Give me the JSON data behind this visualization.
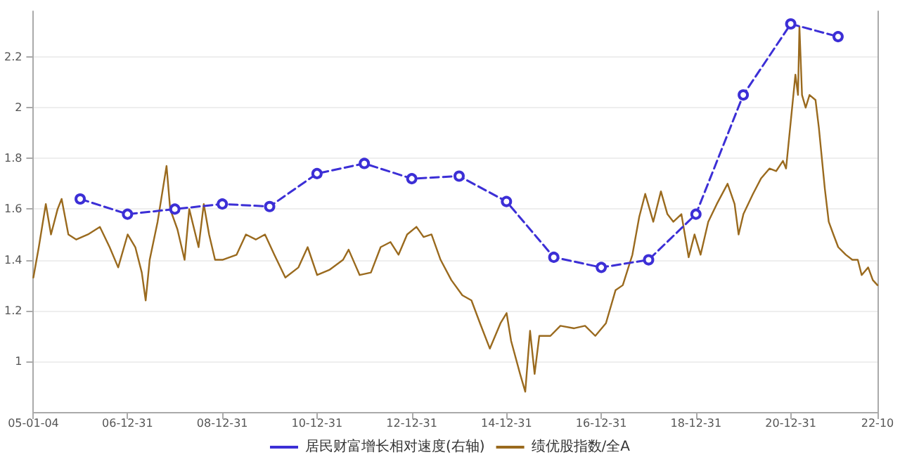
{
  "chart_data": {
    "type": "line",
    "xlim": [
      "2005-01-04",
      "2022-10-31"
    ],
    "xticks": [
      {
        "value": "2005-01-04",
        "label": "05-01-04"
      },
      {
        "value": "2006-12-31",
        "label": "06-12-31"
      },
      {
        "value": "2008-12-31",
        "label": "08-12-31"
      },
      {
        "value": "2010-12-31",
        "label": "10-12-31"
      },
      {
        "value": "2012-12-31",
        "label": "12-12-31"
      },
      {
        "value": "2014-12-31",
        "label": "14-12-31"
      },
      {
        "value": "2016-12-31",
        "label": "16-12-31"
      },
      {
        "value": "2018-12-31",
        "label": "18-12-31"
      },
      {
        "value": "2020-12-31",
        "label": "20-12-31"
      },
      {
        "value": "2022-10-31",
        "label": "22-10"
      }
    ],
    "ylim": [
      0.8,
      2.38
    ],
    "yticks": [
      1,
      1.2,
      1.4,
      1.6,
      1.8,
      2,
      2.2
    ],
    "grid": "y",
    "legend": "bottom",
    "series": [
      {
        "name": "居民财富增长相对速度(右轴)",
        "color": "#3c2fd6",
        "marker": "circle",
        "line_style": "dashed",
        "x": [
          "2005-12-31",
          "2006-12-31",
          "2007-12-31",
          "2008-12-31",
          "2009-12-31",
          "2010-12-31",
          "2011-12-31",
          "2012-12-31",
          "2013-12-31",
          "2014-12-31",
          "2015-12-31",
          "2016-12-31",
          "2017-12-31",
          "2018-12-31",
          "2019-12-31",
          "2020-12-31",
          "2021-12-31"
        ],
        "values": [
          1.64,
          1.58,
          1.6,
          1.62,
          1.61,
          1.74,
          1.78,
          1.72,
          1.73,
          1.63,
          1.41,
          1.37,
          1.4,
          1.58,
          2.05,
          2.33,
          2.28
        ]
      },
      {
        "name": "绩优股指数/全A",
        "color": "#9a6a1e",
        "marker": "none",
        "line_style": "solid",
        "x": [
          "2005-01-04",
          "2005-02-15",
          "2005-04-10",
          "2005-05-20",
          "2005-07-10",
          "2005-08-10",
          "2005-10-01",
          "2005-12-01",
          "2006-03-01",
          "2006-06-01",
          "2006-08-15",
          "2006-10-20",
          "2007-01-01",
          "2007-03-01",
          "2007-04-20",
          "2007-05-20",
          "2007-06-20",
          "2007-08-20",
          "2007-10-28",
          "2007-11-25",
          "2008-01-20",
          "2008-03-15",
          "2008-04-20",
          "2008-07-01",
          "2008-08-10",
          "2008-09-20",
          "2008-11-05",
          "2009-01-01",
          "2009-04-20",
          "2009-07-01",
          "2009-09-15",
          "2009-11-25",
          "2010-02-05",
          "2010-05-01",
          "2010-08-10",
          "2010-10-20",
          "2011-01-01",
          "2011-04-05",
          "2011-07-20",
          "2011-09-01",
          "2011-11-25",
          "2012-02-20",
          "2012-05-05",
          "2012-07-20",
          "2012-09-20",
          "2012-11-25",
          "2013-02-05",
          "2013-04-01",
          "2013-06-01",
          "2013-08-10",
          "2013-11-01",
          "2014-01-25",
          "2014-04-05",
          "2014-06-10",
          "2014-08-25",
          "2014-11-15",
          "2015-01-01",
          "2015-02-05",
          "2015-04-15",
          "2015-05-25",
          "2015-07-01",
          "2015-08-05",
          "2015-09-10",
          "2015-12-05",
          "2016-02-20",
          "2016-06-05",
          "2016-08-28",
          "2016-11-15",
          "2017-02-05",
          "2017-04-20",
          "2017-06-15",
          "2017-08-28",
          "2017-10-20",
          "2017-12-05",
          "2018-02-05",
          "2018-04-05",
          "2018-05-25",
          "2018-07-10",
          "2018-09-10",
          "2018-11-05",
          "2018-12-20",
          "2019-02-05",
          "2019-04-05",
          "2019-06-10",
          "2019-09-01",
          "2019-10-25",
          "2019-11-25",
          "2020-01-01",
          "2020-03-15",
          "2020-05-15",
          "2020-07-20",
          "2020-09-10",
          "2020-11-01",
          "2020-11-25",
          "2021-01-01",
          "2021-02-05",
          "2021-02-25",
          "2021-03-08",
          "2021-03-28",
          "2021-04-25",
          "2021-05-25",
          "2021-07-10",
          "2021-08-05",
          "2021-09-20",
          "2021-10-20",
          "2021-11-25",
          "2022-01-01",
          "2022-03-01",
          "2022-04-20",
          "2022-06-01",
          "2022-07-01",
          "2022-08-20",
          "2022-09-25",
          "2022-10-31"
        ],
        "values": [
          1.33,
          1.45,
          1.62,
          1.5,
          1.6,
          1.64,
          1.5,
          1.48,
          1.5,
          1.53,
          1.45,
          1.37,
          1.5,
          1.45,
          1.35,
          1.24,
          1.4,
          1.55,
          1.77,
          1.6,
          1.52,
          1.4,
          1.6,
          1.45,
          1.62,
          1.5,
          1.4,
          1.4,
          1.42,
          1.5,
          1.48,
          1.5,
          1.42,
          1.33,
          1.37,
          1.45,
          1.34,
          1.36,
          1.4,
          1.44,
          1.34,
          1.35,
          1.45,
          1.47,
          1.42,
          1.5,
          1.53,
          1.49,
          1.5,
          1.4,
          1.32,
          1.26,
          1.24,
          1.15,
          1.05,
          1.15,
          1.19,
          1.08,
          0.95,
          0.88,
          1.12,
          0.95,
          1.1,
          1.1,
          1.14,
          1.13,
          1.14,
          1.1,
          1.15,
          1.28,
          1.3,
          1.42,
          1.57,
          1.66,
          1.55,
          1.67,
          1.58,
          1.55,
          1.58,
          1.41,
          1.5,
          1.42,
          1.55,
          1.62,
          1.7,
          1.62,
          1.5,
          1.58,
          1.66,
          1.72,
          1.76,
          1.75,
          1.79,
          1.76,
          1.95,
          2.13,
          2.05,
          2.32,
          2.05,
          2.0,
          2.05,
          2.03,
          1.92,
          1.68,
          1.55,
          1.5,
          1.45,
          1.42,
          1.4,
          1.4,
          1.34,
          1.37,
          1.32,
          1.3
        ]
      }
    ]
  }
}
